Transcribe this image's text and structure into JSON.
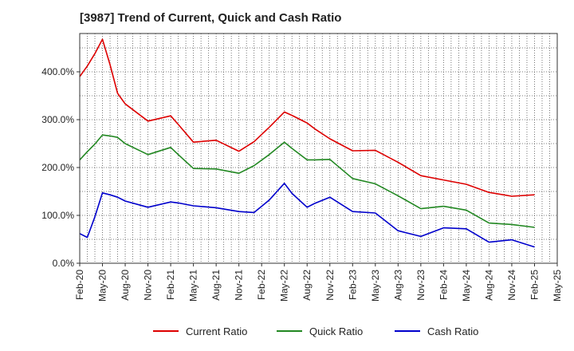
{
  "chart_data": {
    "type": "line",
    "title": "[3987]  Trend of Current, Quick and Cash Ratio",
    "xlabel": "",
    "ylabel": "",
    "ylim": [
      0,
      480
    ],
    "yticks": [
      0,
      100,
      200,
      300,
      400
    ],
    "ytick_labels": [
      "0.0%",
      "100.0%",
      "200.0%",
      "300.0%",
      "400.0%"
    ],
    "x_range": [
      0,
      63
    ],
    "xtick_positions": [
      0,
      3,
      6,
      9,
      12,
      15,
      18,
      21,
      24,
      27,
      30,
      33,
      36,
      39,
      42,
      45,
      48,
      51,
      54,
      57,
      60,
      63
    ],
    "xtick_labels": [
      "Feb-20",
      "May-20",
      "Aug-20",
      "Nov-20",
      "Feb-21",
      "May-21",
      "Aug-21",
      "Nov-21",
      "Feb-22",
      "May-22",
      "Aug-22",
      "Nov-22",
      "Feb-23",
      "May-23",
      "Aug-23",
      "Nov-23",
      "Feb-24",
      "May-24",
      "Aug-24",
      "Nov-24",
      "Feb-25",
      "May-25"
    ],
    "grid": true,
    "legend_position": "bottom",
    "series": [
      {
        "name": "Current Ratio",
        "color": "#dd0000",
        "x": [
          0,
          1,
          2,
          3,
          4,
          5,
          6,
          9,
          12,
          13,
          15,
          18,
          21,
          23,
          25,
          27,
          28,
          30,
          31,
          33,
          36,
          39,
          42,
          45,
          48,
          51,
          54,
          57,
          60
        ],
        "values": [
          390,
          412,
          438,
          468,
          415,
          355,
          333,
          297,
          308,
          290,
          253,
          257,
          234,
          254,
          284,
          316,
          309,
          293,
          281,
          260,
          235,
          236,
          211,
          183,
          174,
          165,
          148,
          140,
          143
        ]
      },
      {
        "name": "Quick Ratio",
        "color": "#228822",
        "x": [
          0,
          1,
          2,
          3,
          4,
          5,
          6,
          9,
          12,
          13,
          15,
          18,
          21,
          23,
          25,
          27,
          28,
          30,
          31,
          33,
          36,
          39,
          42,
          45,
          48,
          51,
          54,
          57,
          60
        ],
        "values": [
          216,
          233,
          249,
          268,
          266,
          263,
          250,
          227,
          242,
          227,
          198,
          197,
          188,
          204,
          227,
          253,
          240,
          216,
          216,
          217,
          177,
          166,
          141,
          114,
          119,
          111,
          84,
          81,
          75
        ]
      },
      {
        "name": "Cash Ratio",
        "color": "#0000cc",
        "x": [
          0,
          1,
          2,
          3,
          4,
          5,
          6,
          9,
          12,
          13,
          15,
          18,
          21,
          23,
          25,
          27,
          28,
          30,
          31,
          33,
          36,
          39,
          42,
          45,
          48,
          51,
          54,
          57,
          60
        ],
        "values": [
          62,
          54,
          97,
          147,
          143,
          138,
          130,
          117,
          128,
          126,
          120,
          116,
          108,
          106,
          132,
          167,
          146,
          117,
          125,
          138,
          108,
          105,
          68,
          56,
          74,
          72,
          44,
          49,
          34
        ]
      }
    ]
  }
}
